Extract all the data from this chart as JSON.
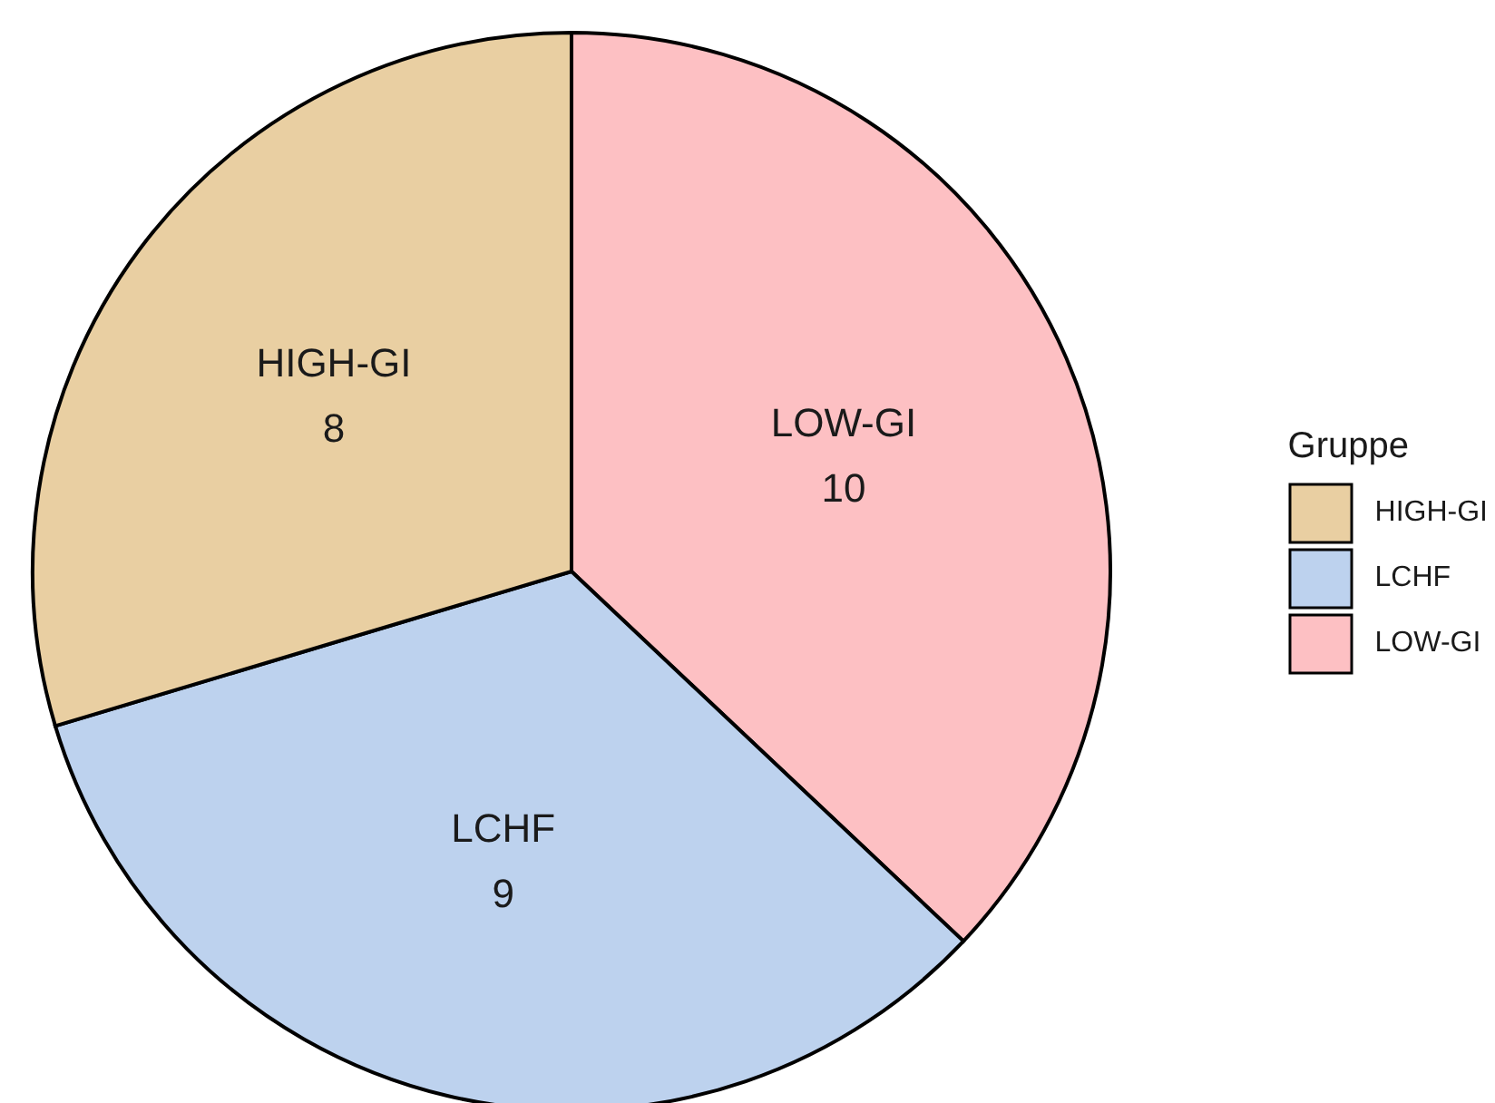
{
  "chart_data": {
    "type": "pie",
    "legend_title": "Gruppe",
    "categories": [
      "HIGH-GI",
      "LCHF",
      "LOW-GI"
    ],
    "values": [
      8,
      9,
      10
    ],
    "colors": [
      "#e9cfa2",
      "#bdd2ee",
      "#fdc0c3"
    ],
    "data_labels": true,
    "legend": "right"
  }
}
